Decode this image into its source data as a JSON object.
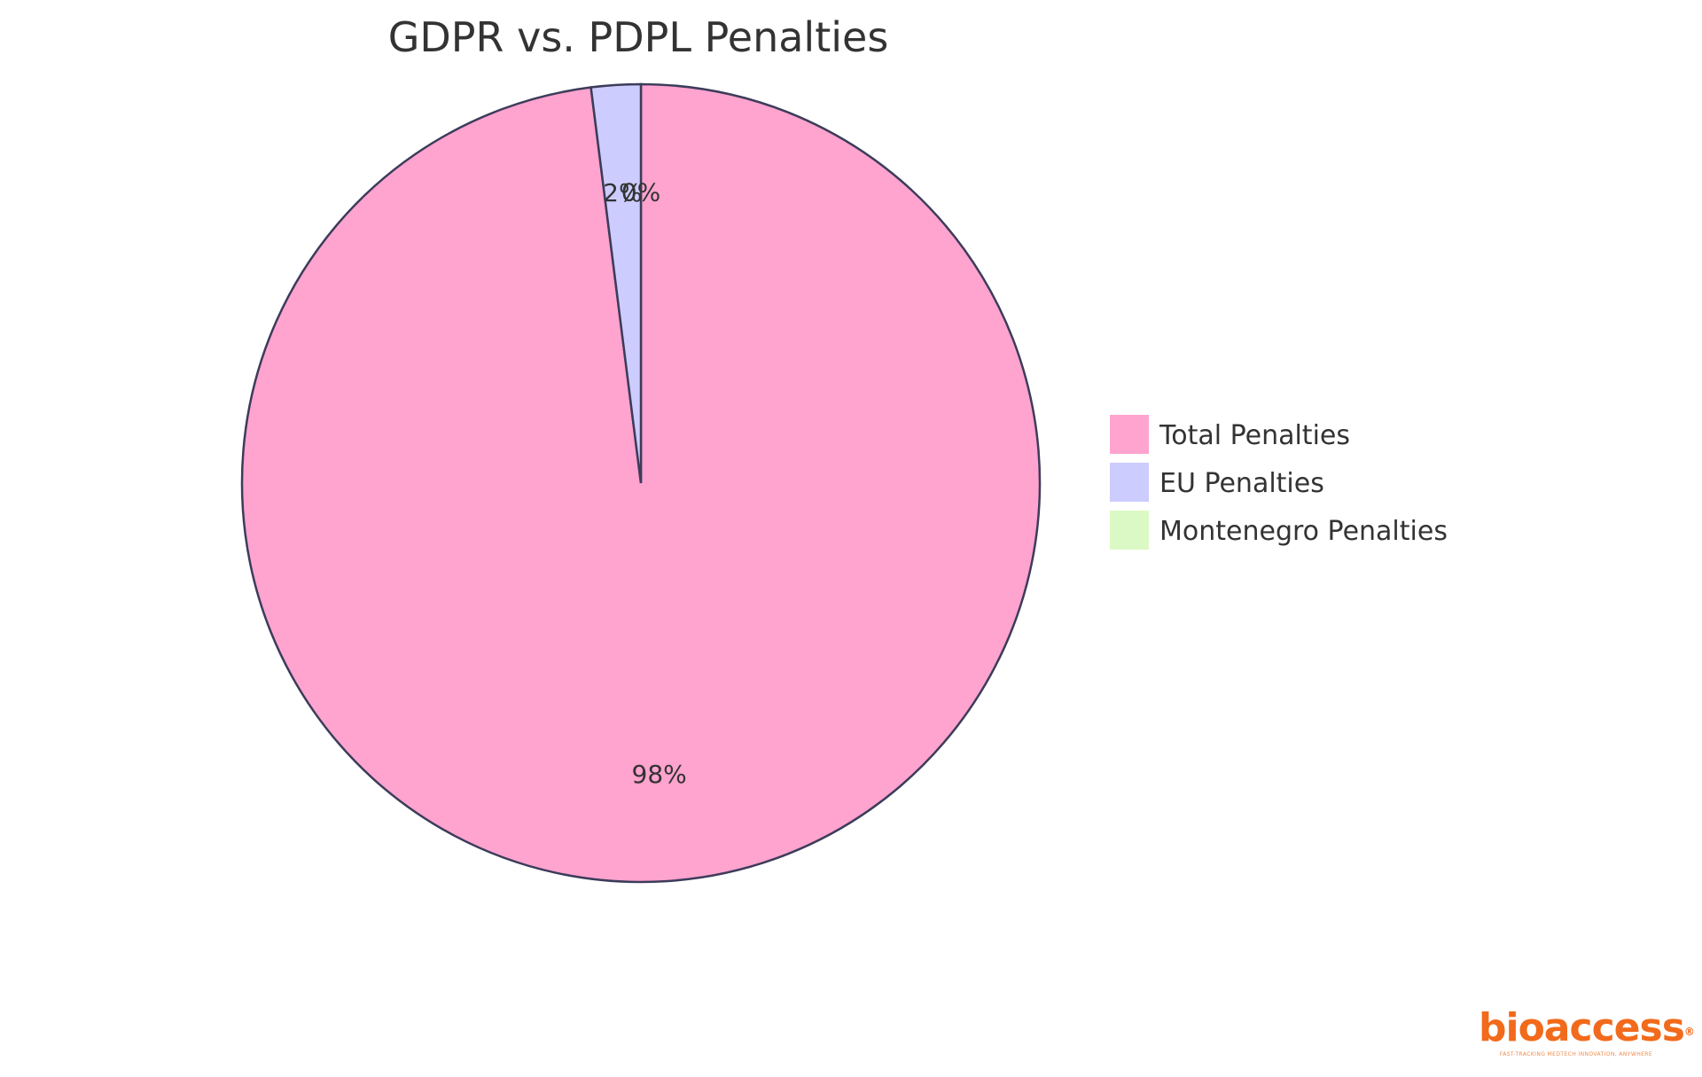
{
  "chart_data": {
    "type": "pie",
    "title": "GDPR vs. PDPL Penalties",
    "slices": [
      {
        "name": "Total Penalties",
        "percent": 98,
        "label": "98%",
        "color": "#ffa3cf"
      },
      {
        "name": "EU Penalties",
        "percent": 2,
        "label": "2%",
        "color": "#cdccff"
      },
      {
        "name": "Montenegro Penalties",
        "percent": 0,
        "label": "0%",
        "color": "#dbf9c4"
      }
    ],
    "legend_position": "right",
    "stroke_color": "#3c3c5a"
  },
  "brand": {
    "name": "bioaccess",
    "registered": "®",
    "tagline": "FAST-TRACKING MEDTECH INNOVATION, ANYWHERE"
  }
}
